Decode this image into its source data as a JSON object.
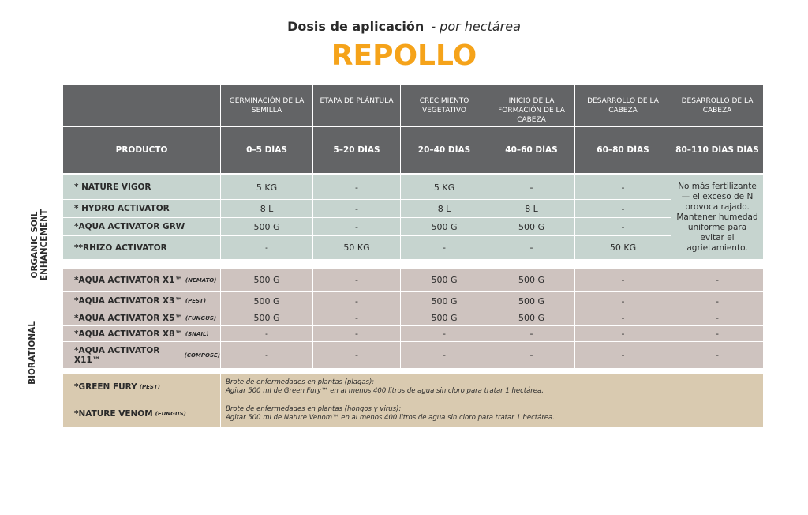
{
  "header": {
    "title": "Dosis de aplicación",
    "subtitle": "- por hectárea",
    "crop": "REPOLLO"
  },
  "table": {
    "stages": [
      "GERMINACIÓN DE LA SEMILLA",
      "ETAPA DE PLÁNTULA",
      "CRECIMIENTO VEGETATIVO",
      "INICIO DE LA FORMACIÓN DE LA CABEZA",
      "DESARROLLO DE LA CABEZA",
      "DESARROLLO DE LA CABEZA"
    ],
    "product_header": "PRODUCTO",
    "periods": [
      "0–5 DÍAS",
      "5–20 DÍAS",
      "20–40 DÍAS",
      "40–60 DÍAS",
      "60–80 DÍAS",
      "80–110 DÍAS DÍAS"
    ],
    "groups": [
      {
        "label": "ORGANIC SOIL ENHANCEMENT",
        "note": "No más fertilizante — el exceso de N provoca rajado. Mantener humedad uniforme para evitar el agrietamiento.",
        "rows": [
          {
            "product": "* NATURE VIGOR",
            "cells": [
              "5 KG",
              "-",
              "5 KG",
              "-",
              "-"
            ]
          },
          {
            "product": "* HYDRO ACTIVATOR",
            "cells": [
              "8 L",
              "-",
              "8 L",
              "8 L",
              "-"
            ]
          },
          {
            "product": "*AQUA ACTIVATOR GRW",
            "cells": [
              "500 G",
              "-",
              "500 G",
              "500 G",
              "-"
            ]
          },
          {
            "product": "**RHIZO ACTIVATOR",
            "cells": [
              "-",
              "50 KG",
              "-",
              "-",
              "50 KG"
            ]
          }
        ]
      },
      {
        "label": "BIORATIONAL",
        "rows": [
          {
            "product": "*AQUA ACTIVATOR X1™",
            "tag": "(NEMATO)",
            "cells": [
              "500 G",
              "-",
              "500 G",
              "500 G",
              "-",
              "-"
            ]
          },
          {
            "product": "*AQUA ACTIVATOR X3™",
            "tag": "(PEST)",
            "cells": [
              "500 G",
              "-",
              "500 G",
              "500 G",
              "-",
              "-"
            ]
          },
          {
            "product": "*AQUA ACTIVATOR X5™",
            "tag": "(FUNGUS)",
            "cells": [
              "500 G",
              "-",
              "500 G",
              "500 G",
              "-",
              "-"
            ]
          },
          {
            "product": "*AQUA ACTIVATOR X8™",
            "tag": "(SNAIL)",
            "cells": [
              "-",
              "-",
              "-",
              "-",
              "-",
              "-"
            ]
          },
          {
            "product": "*AQUA ACTIVATOR X11™",
            "tag": "(COMPOSE)",
            "cells": [
              "-",
              "-",
              "-",
              "-",
              "-",
              "-"
            ]
          }
        ]
      }
    ],
    "instructions": [
      {
        "product": "*GREEN FURY",
        "tag": "(PEST)",
        "lines": [
          "Brote de enfermedades en plantas (plagas):",
          "Agitar 500 ml de Green Fury™ en al menos 400 litros de agua sin cloro para tratar 1 hectárea."
        ]
      },
      {
        "product": "*NATURE VENOM",
        "tag": "(FUNGUS)",
        "lines": [
          "Brote de enfermedades en plantas (hongos y virus):",
          "Agitar 500 ml de Nature Venom™ en al menos 400 litros de agua sin cloro para tratar 1 hectárea."
        ]
      }
    ]
  }
}
